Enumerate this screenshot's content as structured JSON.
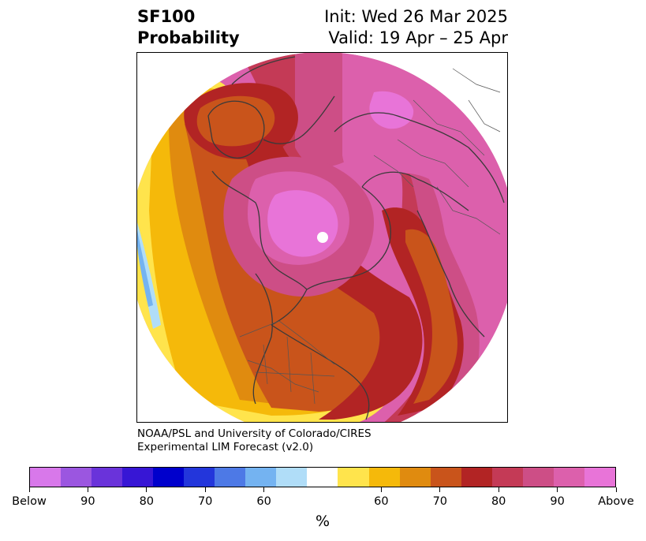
{
  "header": {
    "variable": "SF100",
    "product": "Probability",
    "init_text": "Init: Wed 26 Mar 2025",
    "valid_text": "Valid: 19 Apr – 25 Apr"
  },
  "map": {
    "projection": "north polar stereographic",
    "content": "filled probability contours over Northern Hemisphere with coastlines and borders"
  },
  "credit": {
    "line1": "NOAA/PSL and University of Colorado/CIRES",
    "line2": "Experimental LIM Forecast (v2.0)"
  },
  "colorbar": {
    "colors": [
      "#d878ea",
      "#9b56e0",
      "#6a33da",
      "#3716d5",
      "#0000cc",
      "#2336db",
      "#4d79e6",
      "#74b3f1",
      "#b0ddf8",
      "#ffffff",
      "#ffe44c",
      "#f5b90a",
      "#e08b0f",
      "#c9541b",
      "#b22424",
      "#c43a56",
      "#cd4e86",
      "#dc60ac",
      "#e874d8"
    ],
    "labels": [
      {
        "text": "Below",
        "boundary": 0
      },
      {
        "text": "90",
        "boundary": 2
      },
      {
        "text": "80",
        "boundary": 4
      },
      {
        "text": "70",
        "boundary": 6
      },
      {
        "text": "60",
        "boundary": 8
      },
      {
        "text": "60",
        "boundary": 12
      },
      {
        "text": "70",
        "boundary": 14
      },
      {
        "text": "80",
        "boundary": 16
      },
      {
        "text": "90",
        "boundary": 18
      },
      {
        "text": "Above",
        "boundary": 20
      }
    ],
    "unit": "%"
  }
}
